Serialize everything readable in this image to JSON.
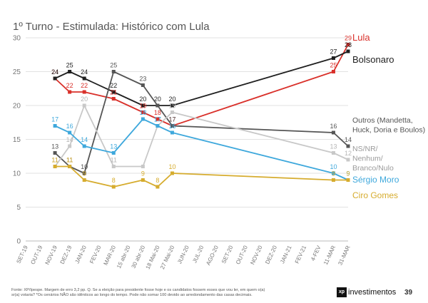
{
  "chart_data": {
    "type": "line",
    "title": "1º Turno - Estimulada: Histórico com Lula",
    "ylim": [
      0,
      30
    ],
    "yticks": [
      0,
      5,
      10,
      15,
      20,
      25,
      30
    ],
    "grid": true,
    "legend": "right",
    "x_ticks": [
      "SET-19",
      "OUT-19",
      "NOV-19",
      "DEZ-19",
      "JAN-20",
      "FEV-20",
      "MAR-20",
      "15 abr-20",
      "30 abr-20",
      "18 Mai-20",
      "27 Mai-20",
      "JUN-20",
      "JUL-20",
      "AGO-20",
      "SET-20",
      "OUT-20",
      "NOV-20",
      "DEZ-20",
      "JAN-21",
      "FEV-21",
      "4-FEV",
      "11-MAR",
      "31-MAR"
    ],
    "series": [
      {
        "name": "Lula",
        "color": "#d9302a",
        "label_color": "#d9302a",
        "points": [
          [
            2,
            24
          ],
          [
            3,
            22
          ],
          [
            4,
            22
          ],
          [
            6,
            21
          ],
          [
            8,
            19
          ],
          [
            9,
            18
          ],
          [
            10,
            17
          ],
          [
            21,
            25
          ],
          [
            22,
            29
          ]
        ],
        "labels": [
          "24",
          "22",
          "22",
          "21",
          "19",
          "18",
          "17",
          "25",
          "29"
        ]
      },
      {
        "name": "Bolsonaro",
        "color": "#1f1f1f",
        "label_color": "#1f1f1f",
        "points": [
          [
            2,
            24
          ],
          [
            3,
            25
          ],
          [
            4,
            24
          ],
          [
            6,
            22
          ],
          [
            8,
            20
          ],
          [
            9,
            20
          ],
          [
            10,
            20
          ],
          [
            21,
            27
          ],
          [
            22,
            28
          ]
        ],
        "labels": [
          "24",
          "25",
          "24",
          "22",
          "20",
          "20",
          "20",
          "27",
          "28"
        ]
      },
      {
        "name": "Outros (Mandetta, Huck, Doria e Boulos)",
        "color": "#555555",
        "label_color": "#555555",
        "points": [
          [
            2,
            13
          ],
          [
            3,
            11
          ],
          [
            4,
            10
          ],
          [
            6,
            25
          ],
          [
            8,
            23
          ],
          [
            9,
            20
          ],
          [
            10,
            17
          ],
          [
            21,
            16
          ],
          [
            22,
            14
          ]
        ],
        "labels": [
          "13",
          "11",
          "10",
          "25",
          "23",
          "20",
          "17",
          "16",
          "14"
        ]
      },
      {
        "name": "NS/NR/ Nenhum/ Branco/Nulo",
        "color": "#c8c8c8",
        "label_color": "#b5b5b5",
        "points": [
          [
            2,
            11
          ],
          [
            3,
            14
          ],
          [
            4,
            20
          ],
          [
            6,
            11
          ],
          [
            8,
            11
          ],
          [
            9,
            17
          ],
          [
            10,
            19
          ],
          [
            21,
            13
          ],
          [
            22,
            12
          ]
        ],
        "labels": [
          "11",
          "14",
          "20",
          "11",
          "",
          "17",
          "19",
          "13",
          "12"
        ]
      },
      {
        "name": "Sérgio Moro",
        "color": "#3ea8dc",
        "label_color": "#3ea8dc",
        "points": [
          [
            2,
            17
          ],
          [
            3,
            16
          ],
          [
            4,
            14
          ],
          [
            6,
            13
          ],
          [
            8,
            18
          ],
          [
            9,
            17
          ],
          [
            10,
            16
          ],
          [
            21,
            10
          ],
          [
            22,
            9
          ]
        ],
        "labels": [
          "17",
          "16",
          "14",
          "13",
          "18",
          "17",
          "16",
          "10",
          "9"
        ]
      },
      {
        "name": "Ciro Gomes",
        "color": "#d6ac2e",
        "label_color": "#d6ac2e",
        "points": [
          [
            2,
            11
          ],
          [
            3,
            11
          ],
          [
            4,
            9
          ],
          [
            6,
            8
          ],
          [
            8,
            9
          ],
          [
            9,
            8
          ],
          [
            10,
            10
          ],
          [
            21,
            9
          ],
          [
            22,
            9
          ]
        ],
        "labels": [
          "11",
          "11",
          "9",
          "8",
          "9",
          "8",
          "10",
          "9",
          "9"
        ]
      }
    ],
    "legend_entries": [
      {
        "lines": [
          "Lula"
        ],
        "color": "#d9302a"
      },
      {
        "lines": [
          "Bolsonaro"
        ],
        "color": "#1f1f1f"
      },
      {
        "lines": [
          "Outros (Mandetta,",
          "Huck, Doria e Boulos)"
        ],
        "color": "#555555"
      },
      {
        "lines": [
          "NS/NR/",
          "Nenhum/",
          "Branco/Nulo"
        ],
        "color": "#9a9a9a"
      },
      {
        "lines": [
          "Sérgio Moro"
        ],
        "color": "#3ea8dc"
      },
      {
        "lines": [
          "Ciro Gomes"
        ],
        "color": "#d6ac2e"
      }
    ]
  },
  "footer": {
    "line1": "Fonte: XP/Ipespe. Margem de erro 3,2 pp. Q. Se a eleição para presidente fosse hoje e os candidatos fossem esses que vou ler, em quem o(a)",
    "line2": "sr(a) votaria? *Os cenários NÃO são idênticos ao longo do tempo. Pode não somar 100 devido ao arredondamento das casas decimais."
  },
  "brand": {
    "mark": "xp",
    "name": "investimentos",
    "page_number": "39"
  }
}
